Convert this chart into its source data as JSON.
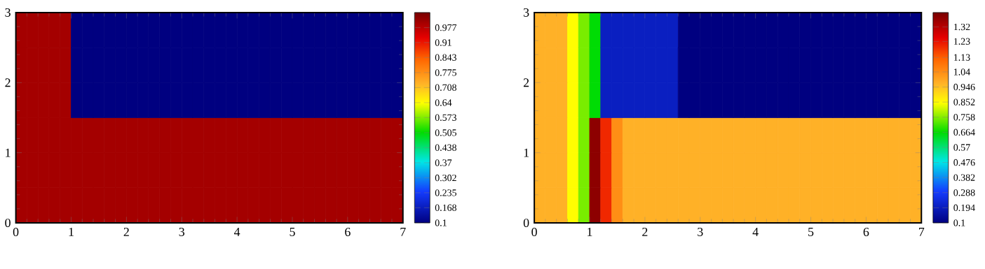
{
  "chart_data": [
    {
      "type": "heatmap",
      "x": [
        0.1,
        0.3,
        0.5,
        0.7,
        0.9,
        1.1,
        1.3,
        1.5,
        1.7,
        1.9,
        2.1,
        2.3,
        2.5,
        2.7,
        2.9,
        3.1,
        3.3,
        3.5,
        3.7,
        3.9,
        4.1,
        4.3,
        4.5,
        4.7,
        4.9,
        5.1,
        5.3,
        5.5,
        5.7,
        5.9,
        6.1,
        6.3,
        6.5,
        6.7,
        6.9
      ],
      "y": [
        2.75,
        2.25,
        1.75,
        1.25,
        0.75,
        0.25
      ],
      "xlim": [
        0,
        7
      ],
      "ylim": [
        0,
        3
      ],
      "xticks": [
        0,
        1,
        2,
        3,
        4,
        5,
        6,
        7
      ],
      "yticks": [
        0,
        1,
        2,
        3
      ],
      "clim": [
        0.1,
        1.045
      ],
      "cticks": [
        0.1,
        0.168,
        0.235,
        0.302,
        0.37,
        0.438,
        0.505,
        0.573,
        0.64,
        0.708,
        0.775,
        0.843,
        0.91,
        0.977
      ],
      "cells": [
        [
          1,
          1,
          1,
          1,
          1,
          0.1,
          0.1,
          0.1,
          0.1,
          0.1,
          0.1,
          0.1,
          0.1,
          0.1,
          0.1,
          0.1,
          0.1,
          0.1,
          0.1,
          0.1,
          0.1,
          0.1,
          0.1,
          0.1,
          0.1,
          0.1,
          0.1,
          0.1,
          0.1,
          0.1,
          0.1,
          0.1,
          0.1,
          0.1,
          0.1
        ],
        [
          1,
          1,
          1,
          1,
          1,
          0.1,
          0.1,
          0.1,
          0.1,
          0.1,
          0.1,
          0.1,
          0.1,
          0.1,
          0.1,
          0.1,
          0.1,
          0.1,
          0.1,
          0.1,
          0.1,
          0.1,
          0.1,
          0.1,
          0.1,
          0.1,
          0.1,
          0.1,
          0.1,
          0.1,
          0.1,
          0.1,
          0.1,
          0.1,
          0.1
        ],
        [
          1,
          1,
          1,
          1,
          1,
          0.1,
          0.1,
          0.1,
          0.1,
          0.1,
          0.1,
          0.1,
          0.1,
          0.1,
          0.1,
          0.1,
          0.1,
          0.1,
          0.1,
          0.1,
          0.1,
          0.1,
          0.1,
          0.1,
          0.1,
          0.1,
          0.1,
          0.1,
          0.1,
          0.1,
          0.1,
          0.1,
          0.1,
          0.1,
          0.1
        ],
        [
          1,
          1,
          1,
          1,
          1,
          1,
          1,
          1,
          1,
          1,
          1,
          1,
          1,
          1,
          1,
          1,
          1,
          1,
          1,
          1,
          1,
          1,
          1,
          1,
          1,
          1,
          1,
          1,
          1,
          1,
          1,
          1,
          1,
          1,
          1
        ],
        [
          1,
          1,
          1,
          1,
          1,
          1,
          1,
          1,
          1,
          1,
          1,
          1,
          1,
          1,
          1,
          1,
          1,
          1,
          1,
          1,
          1,
          1,
          1,
          1,
          1,
          1,
          1,
          1,
          1,
          1,
          1,
          1,
          1,
          1,
          1
        ],
        [
          1,
          1,
          1,
          1,
          1,
          1,
          1,
          1,
          1,
          1,
          1,
          1,
          1,
          1,
          1,
          1,
          1,
          1,
          1,
          1,
          1,
          1,
          1,
          1,
          1,
          1,
          1,
          1,
          1,
          1,
          1,
          1,
          1,
          1,
          1
        ]
      ]
    },
    {
      "type": "heatmap",
      "x": [
        0.1,
        0.3,
        0.5,
        0.7,
        0.9,
        1.1,
        1.3,
        1.5,
        1.7,
        1.9,
        2.1,
        2.3,
        2.5,
        2.7,
        2.9,
        3.1,
        3.3,
        3.5,
        3.7,
        3.9,
        4.1,
        4.3,
        4.5,
        4.7,
        4.9,
        5.1,
        5.3,
        5.5,
        5.7,
        5.9,
        6.1,
        6.3,
        6.5,
        6.7,
        6.9
      ],
      "y": [
        2.75,
        2.25,
        1.75,
        1.25,
        0.75,
        0.25
      ],
      "xlim": [
        0,
        7
      ],
      "ylim": [
        0,
        3
      ],
      "xticks": [
        0,
        1,
        2,
        3,
        4,
        5,
        6,
        7
      ],
      "yticks": [
        0,
        1,
        2,
        3
      ],
      "clim": [
        0.1,
        1.41
      ],
      "cticks": [
        0.1,
        0.194,
        0.288,
        0.382,
        0.476,
        0.57,
        0.664,
        0.758,
        0.852,
        0.946,
        1.04,
        1.13,
        1.23,
        1.32
      ],
      "cells": [
        [
          0.97,
          0.97,
          0.97,
          0.85,
          0.75,
          0.66,
          0.2,
          0.2,
          0.2,
          0.2,
          0.2,
          0.2,
          0.2,
          0.1,
          0.1,
          0.1,
          0.1,
          0.1,
          0.1,
          0.1,
          0.1,
          0.1,
          0.1,
          0.1,
          0.1,
          0.1,
          0.1,
          0.1,
          0.1,
          0.1,
          0.1,
          0.1,
          0.1,
          0.1,
          0.1
        ],
        [
          0.97,
          0.97,
          0.97,
          0.85,
          0.75,
          0.66,
          0.2,
          0.2,
          0.2,
          0.2,
          0.2,
          0.2,
          0.2,
          0.1,
          0.1,
          0.1,
          0.1,
          0.1,
          0.1,
          0.1,
          0.1,
          0.1,
          0.1,
          0.1,
          0.1,
          0.1,
          0.1,
          0.1,
          0.1,
          0.1,
          0.1,
          0.1,
          0.1,
          0.1,
          0.1
        ],
        [
          0.97,
          0.97,
          0.97,
          0.85,
          0.75,
          0.66,
          0.2,
          0.2,
          0.2,
          0.2,
          0.2,
          0.2,
          0.2,
          0.1,
          0.1,
          0.1,
          0.1,
          0.1,
          0.1,
          0.1,
          0.1,
          0.1,
          0.1,
          0.1,
          0.1,
          0.1,
          0.1,
          0.1,
          0.1,
          0.1,
          0.1,
          0.1,
          0.1,
          0.1,
          0.1
        ],
        [
          0.97,
          0.97,
          0.97,
          0.85,
          0.75,
          1.38,
          1.2,
          1.04,
          0.97,
          0.97,
          0.97,
          0.97,
          0.97,
          0.97,
          0.97,
          0.97,
          0.97,
          0.97,
          0.97,
          0.97,
          0.97,
          0.97,
          0.97,
          0.97,
          0.97,
          0.97,
          0.97,
          0.97,
          0.97,
          0.97,
          0.97,
          0.97,
          0.97,
          0.97,
          0.97
        ],
        [
          0.97,
          0.97,
          0.97,
          0.85,
          0.75,
          1.38,
          1.2,
          1.04,
          0.97,
          0.97,
          0.97,
          0.97,
          0.97,
          0.97,
          0.97,
          0.97,
          0.97,
          0.97,
          0.97,
          0.97,
          0.97,
          0.97,
          0.97,
          0.97,
          0.97,
          0.97,
          0.97,
          0.97,
          0.97,
          0.97,
          0.97,
          0.97,
          0.97,
          0.97,
          0.97
        ],
        [
          0.97,
          0.97,
          0.97,
          0.85,
          0.75,
          1.38,
          1.2,
          1.04,
          0.97,
          0.97,
          0.97,
          0.97,
          0.97,
          0.97,
          0.97,
          0.97,
          0.97,
          0.97,
          0.97,
          0.97,
          0.97,
          0.97,
          0.97,
          0.97,
          0.97,
          0.97,
          0.97,
          0.97,
          0.97,
          0.97,
          0.97,
          0.97,
          0.97,
          0.97,
          0.97
        ]
      ]
    }
  ]
}
